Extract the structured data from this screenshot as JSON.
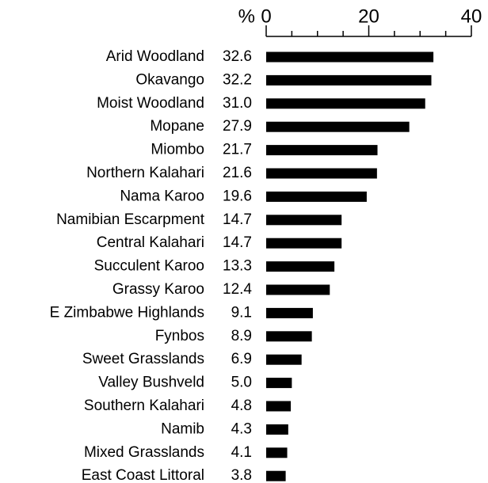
{
  "chart_data": {
    "type": "bar",
    "orientation": "horizontal",
    "xlabel": "%",
    "categories": [
      "Arid Woodland",
      "Okavango",
      "Moist Woodland",
      "Mopane",
      "Miombo",
      "Northern Kalahari",
      "Nama Karoo",
      "Namibian Escarpment",
      "Central Kalahari",
      "Succulent Karoo",
      "Grassy Karoo",
      "E Zimbabwe Highlands",
      "Fynbos",
      "Sweet Grasslands",
      "Valley Bushveld",
      "Southern Kalahari",
      "Namib",
      "Mixed Grasslands",
      "East Coast Littoral"
    ],
    "values": [
      32.6,
      32.2,
      31.0,
      27.9,
      21.7,
      21.6,
      19.6,
      14.7,
      14.7,
      13.3,
      12.4,
      9.1,
      8.9,
      6.9,
      5.0,
      4.8,
      4.3,
      4.1,
      3.8
    ],
    "value_labels": [
      "32.6",
      "32.2",
      "31.0",
      "27.9",
      "21.7",
      "21.6",
      "19.6",
      "14.7",
      "14.7",
      "13.3",
      "12.4",
      "9.1",
      "8.9",
      "6.9",
      "5.0",
      "4.8",
      "4.3",
      "4.1",
      "3.8"
    ],
    "color": "#000000",
    "xlim": [
      0,
      40
    ],
    "xticks": [
      0,
      20,
      40
    ],
    "minor_xticks": [
      5,
      10,
      15,
      25,
      30,
      35
    ]
  }
}
